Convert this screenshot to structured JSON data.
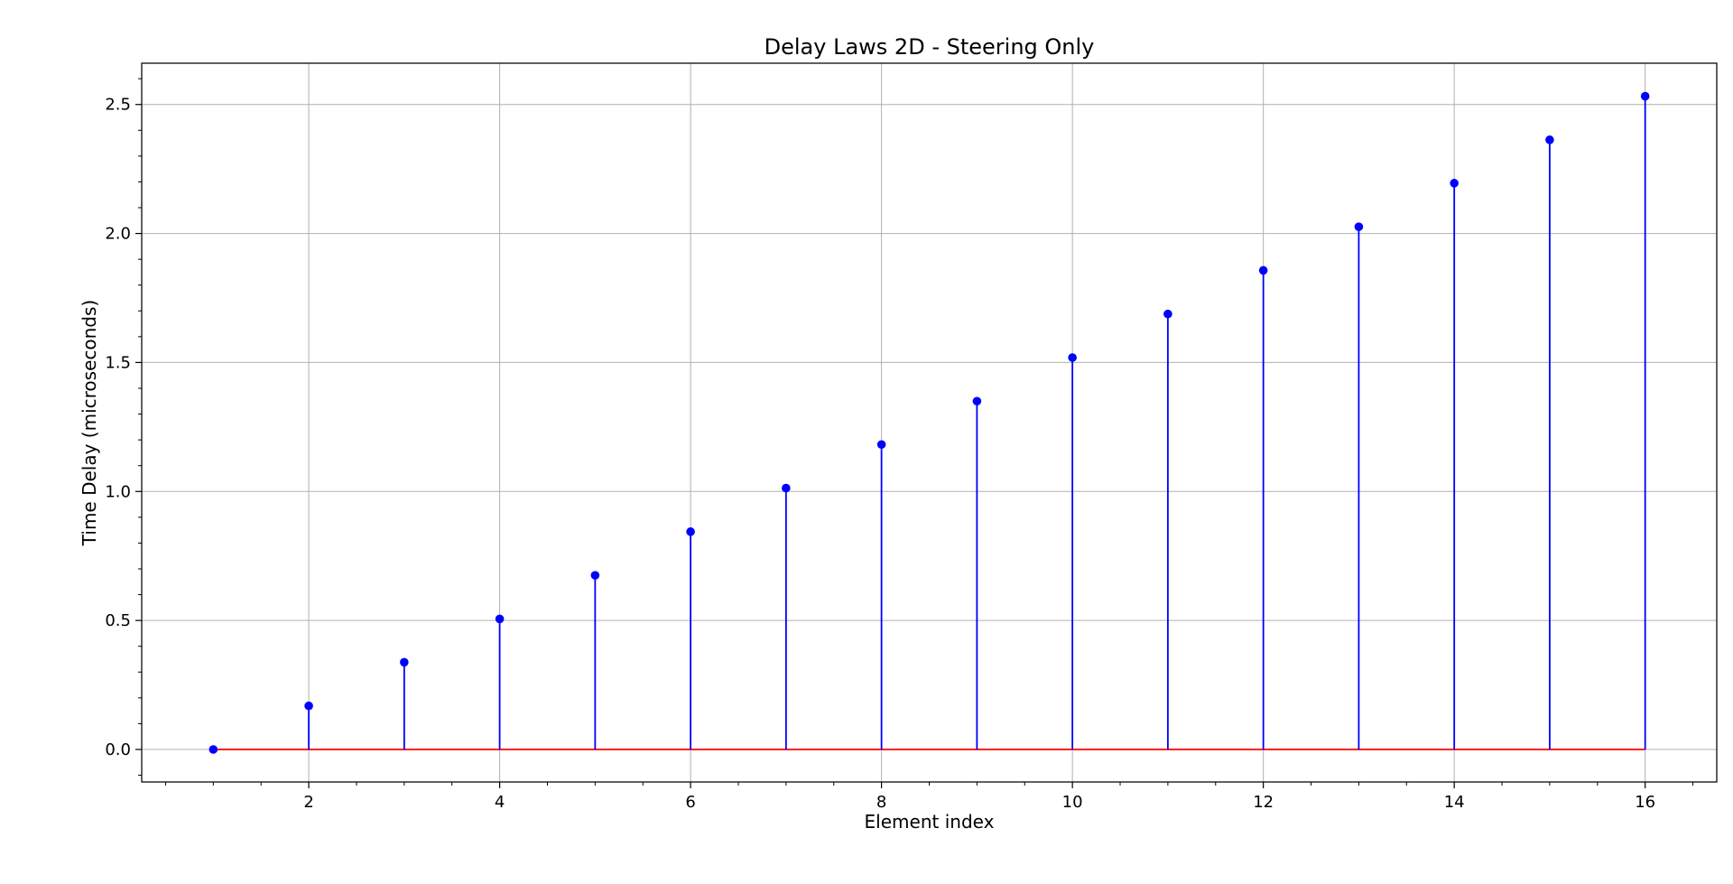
{
  "chart_data": {
    "type": "stem",
    "title": "Delay Laws 2D - Steering Only",
    "xlabel": "Element index",
    "ylabel": "Time Delay (microseconds)",
    "xlim": [
      0.25,
      16.75
    ],
    "ylim": [
      -0.126,
      2.66
    ],
    "x_ticks": [
      2,
      4,
      6,
      8,
      10,
      12,
      14,
      16
    ],
    "x_tick_labels": [
      "2",
      "4",
      "6",
      "8",
      "10",
      "12",
      "14",
      "16"
    ],
    "y_ticks": [
      0.0,
      0.5,
      1.0,
      1.5,
      2.0,
      2.5
    ],
    "y_tick_labels": [
      "0.0",
      "0.5",
      "1.0",
      "1.5",
      "2.0",
      "2.5"
    ],
    "x_minor_step": 0.5,
    "y_minor_step": 0.1,
    "grid": true,
    "legend": "none",
    "x": [
      1,
      2,
      3,
      4,
      5,
      6,
      7,
      8,
      9,
      10,
      11,
      12,
      13,
      14,
      15,
      16
    ],
    "values": [
      0.0,
      0.169,
      0.338,
      0.506,
      0.675,
      0.844,
      1.013,
      1.182,
      1.35,
      1.519,
      1.688,
      1.857,
      2.026,
      2.195,
      2.363,
      2.532
    ],
    "colors": {
      "stem": "#0000ff",
      "marker": "#0000ff",
      "baseline": "#ff0000",
      "grid": "#b0b0b0"
    }
  }
}
